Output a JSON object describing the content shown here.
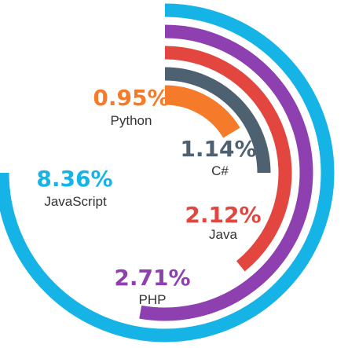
{
  "chart_data": {
    "type": "radial-bar",
    "series": [
      {
        "name": "JavaScript",
        "label": "8.36%",
        "value": 8.36,
        "color": "#16B4E6"
      },
      {
        "name": "PHP",
        "label": "2.71%",
        "value": 2.71,
        "color": "#8E3FB0"
      },
      {
        "name": "Java",
        "label": "2.12%",
        "value": 2.12,
        "color": "#E2463F"
      },
      {
        "name": "C#",
        "label": "1.14%",
        "value": 1.14,
        "color": "#4E6170"
      },
      {
        "name": "Python",
        "label": "0.95%",
        "value": 0.95,
        "color": "#F57A2A"
      }
    ]
  }
}
